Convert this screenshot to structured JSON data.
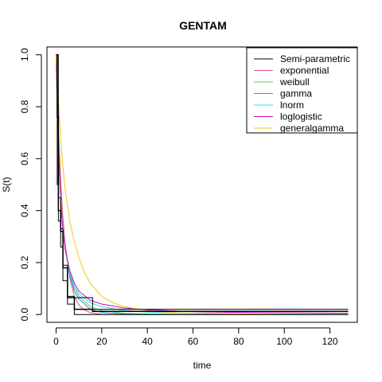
{
  "chart_data": {
    "type": "line",
    "title": "GENTAM",
    "xlabel": "time",
    "ylabel": "S(t)",
    "xlim": [
      -4,
      132
    ],
    "ylim": [
      -0.03,
      1.03
    ],
    "xticks": [
      0,
      20,
      40,
      60,
      80,
      100,
      120
    ],
    "yticks": [
      0.0,
      0.2,
      0.4,
      0.6,
      0.8,
      1.0
    ],
    "xtick_labels": [
      "0",
      "20",
      "40",
      "60",
      "80",
      "100",
      "120"
    ],
    "ytick_labels": [
      "0.0",
      "0.2",
      "0.4",
      "0.6",
      "0.8",
      "1.0"
    ],
    "grid": false,
    "legend_position": "top-right",
    "series": [
      {
        "name": "Semi-parametric",
        "color": "#000000",
        "kind": "step",
        "x": [
          0,
          0.5,
          1,
          2,
          3,
          5,
          8,
          16,
          128
        ],
        "y": [
          1.0,
          0.76,
          0.4,
          0.32,
          0.18,
          0.065,
          0.02,
          0.012,
          0.012
        ],
        "upper": [
          1.0,
          1.0,
          0.45,
          0.33,
          0.19,
          0.07,
          0.065,
          0.02,
          0.02
        ],
        "lower": [
          1.0,
          0.5,
          0.36,
          0.26,
          0.13,
          0.04,
          0.0,
          0.0,
          0.0
        ]
      },
      {
        "name": "exponential",
        "color": "#DF536B",
        "kind": "curve",
        "x": [
          0,
          1,
          2,
          3,
          4,
          6,
          8,
          10,
          12,
          15,
          20,
          30,
          40,
          60,
          128
        ],
        "y": [
          1.0,
          0.72,
          0.52,
          0.37,
          0.27,
          0.14,
          0.07,
          0.037,
          0.02,
          0.007,
          0.001,
          0.0,
          0.0,
          0.0,
          0.0
        ]
      },
      {
        "name": "weibull",
        "color": "#61D04F",
        "kind": "curve",
        "x": [
          0,
          0.5,
          1,
          2,
          3,
          4,
          6,
          8,
          10,
          15,
          20,
          30,
          40,
          60,
          80,
          128
        ],
        "y": [
          1.0,
          0.78,
          0.62,
          0.44,
          0.33,
          0.25,
          0.16,
          0.1,
          0.07,
          0.03,
          0.015,
          0.005,
          0.002,
          0.0,
          0.0,
          0.0
        ]
      },
      {
        "name": "gamma",
        "color": "#2297E6",
        "kind": "curve",
        "x": [
          0,
          0.5,
          1,
          2,
          3,
          4,
          6,
          8,
          10,
          15,
          20,
          30,
          40,
          60,
          128
        ],
        "y": [
          1.0,
          0.8,
          0.64,
          0.45,
          0.33,
          0.25,
          0.15,
          0.09,
          0.06,
          0.02,
          0.008,
          0.002,
          0.0,
          0.0,
          0.0
        ]
      },
      {
        "name": "lnorm",
        "color": "#28E2E5",
        "kind": "curve",
        "x": [
          0,
          0.3,
          0.6,
          1,
          2,
          3,
          4,
          6,
          8,
          10,
          15,
          20,
          30,
          40,
          60,
          80,
          128
        ],
        "y": [
          1.0,
          0.9,
          0.78,
          0.66,
          0.45,
          0.33,
          0.25,
          0.16,
          0.11,
          0.08,
          0.045,
          0.03,
          0.015,
          0.009,
          0.005,
          0.003,
          0.001
        ]
      },
      {
        "name": "loglogistic",
        "color": "#CD0BBC",
        "kind": "curve",
        "x": [
          0,
          0.3,
          0.6,
          1,
          2,
          3,
          4,
          6,
          8,
          10,
          15,
          20,
          30,
          40,
          60,
          80,
          128
        ],
        "y": [
          1.0,
          0.9,
          0.78,
          0.66,
          0.44,
          0.32,
          0.25,
          0.17,
          0.12,
          0.09,
          0.055,
          0.04,
          0.025,
          0.018,
          0.011,
          0.008,
          0.005
        ]
      },
      {
        "name": "generalgamma",
        "color": "#F5C710",
        "kind": "curve",
        "x": [
          0,
          1,
          2,
          3,
          4,
          6,
          8,
          10,
          12,
          15,
          20,
          25,
          30,
          40,
          50,
          60,
          80,
          128
        ],
        "y": [
          1.0,
          0.83,
          0.68,
          0.57,
          0.48,
          0.36,
          0.28,
          0.22,
          0.17,
          0.12,
          0.07,
          0.045,
          0.03,
          0.015,
          0.008,
          0.005,
          0.002,
          0.0
        ]
      }
    ]
  }
}
